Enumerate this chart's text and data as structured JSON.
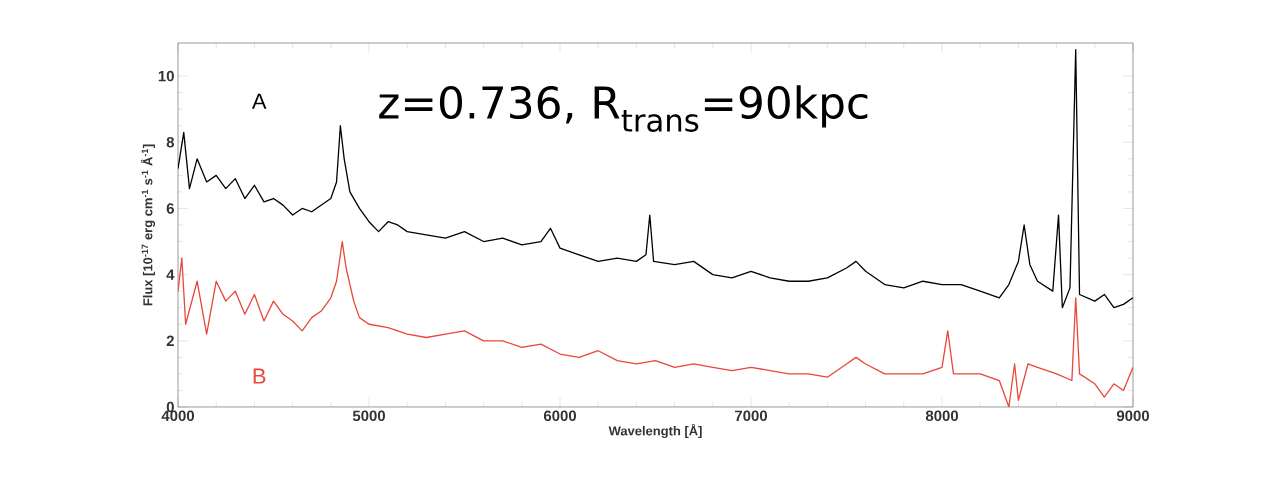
{
  "chart_data": {
    "type": "line",
    "xlabel": "Wavelength [Å]",
    "ylabel": "Flux [10$^{-17}$ erg cm$^{-1}$ s$^{-1}$ Å$^{-1}$]",
    "annotations": [
      "z=0.736, R$_{trans}$=90kpc"
    ],
    "xlim": [
      4000,
      9000
    ],
    "ylim": [
      0,
      11
    ],
    "xticks": [
      4000,
      5000,
      6000,
      7000,
      8000,
      9000
    ],
    "yticks": [
      0,
      2,
      4,
      6,
      8,
      10
    ],
    "grid": false,
    "legend": false,
    "series": [
      {
        "name": "A",
        "color": "#000000",
        "x": [
          4000,
          4030,
          4060,
          4100,
          4150,
          4200,
          4250,
          4300,
          4350,
          4400,
          4450,
          4500,
          4550,
          4600,
          4650,
          4700,
          4750,
          4800,
          4830,
          4850,
          4870,
          4900,
          4950,
          5000,
          5050,
          5100,
          5150,
          5200,
          5300,
          5400,
          5500,
          5600,
          5700,
          5800,
          5900,
          5950,
          6000,
          6100,
          6200,
          6300,
          6400,
          6450,
          6470,
          6490,
          6600,
          6700,
          6800,
          6900,
          7000,
          7100,
          7200,
          7300,
          7400,
          7500,
          7550,
          7600,
          7700,
          7800,
          7900,
          8000,
          8100,
          8200,
          8300,
          8350,
          8400,
          8430,
          8460,
          8500,
          8580,
          8610,
          8630,
          8670,
          8700,
          8720,
          8800,
          8850,
          8900,
          8950,
          9000
        ],
        "values": [
          7.2,
          8.3,
          6.6,
          7.5,
          6.8,
          7.0,
          6.6,
          6.9,
          6.3,
          6.7,
          6.2,
          6.3,
          6.1,
          5.8,
          6.0,
          5.9,
          6.1,
          6.3,
          6.8,
          8.5,
          7.5,
          6.5,
          6.0,
          5.6,
          5.3,
          5.6,
          5.5,
          5.3,
          5.2,
          5.1,
          5.3,
          5.0,
          5.1,
          4.9,
          5.0,
          5.4,
          4.8,
          4.6,
          4.4,
          4.5,
          4.4,
          4.6,
          5.8,
          4.4,
          4.3,
          4.4,
          4.0,
          3.9,
          4.1,
          3.9,
          3.8,
          3.8,
          3.9,
          4.2,
          4.4,
          4.1,
          3.7,
          3.6,
          3.8,
          3.7,
          3.7,
          3.5,
          3.3,
          3.7,
          4.4,
          5.5,
          4.3,
          3.8,
          3.5,
          5.8,
          3.0,
          3.6,
          10.8,
          3.4,
          3.2,
          3.4,
          3.0,
          3.1,
          3.3
        ]
      },
      {
        "name": "B",
        "color": "#e8473a",
        "x": [
          4000,
          4020,
          4040,
          4100,
          4150,
          4200,
          4250,
          4300,
          4350,
          4400,
          4450,
          4500,
          4550,
          4600,
          4650,
          4700,
          4750,
          4800,
          4830,
          4860,
          4880,
          4920,
          4950,
          5000,
          5100,
          5200,
          5300,
          5400,
          5500,
          5600,
          5700,
          5800,
          5900,
          6000,
          6100,
          6200,
          6300,
          6400,
          6500,
          6600,
          6700,
          6800,
          6900,
          7000,
          7100,
          7200,
          7300,
          7400,
          7500,
          7550,
          7600,
          7700,
          7800,
          7900,
          8000,
          8030,
          8060,
          8200,
          8300,
          8350,
          8380,
          8400,
          8450,
          8500,
          8600,
          8680,
          8700,
          8720,
          8800,
          8850,
          8900,
          8950,
          9000
        ],
        "values": [
          3.5,
          4.5,
          2.5,
          3.8,
          2.2,
          3.8,
          3.2,
          3.5,
          2.8,
          3.4,
          2.6,
          3.2,
          2.8,
          2.6,
          2.3,
          2.7,
          2.9,
          3.3,
          3.8,
          5.0,
          4.2,
          3.2,
          2.7,
          2.5,
          2.4,
          2.2,
          2.1,
          2.2,
          2.3,
          2.0,
          2.0,
          1.8,
          1.9,
          1.6,
          1.5,
          1.7,
          1.4,
          1.3,
          1.4,
          1.2,
          1.3,
          1.2,
          1.1,
          1.2,
          1.1,
          1.0,
          1.0,
          0.9,
          1.3,
          1.5,
          1.3,
          1.0,
          1.0,
          1.0,
          1.2,
          2.3,
          1.0,
          1.0,
          0.8,
          0.0,
          1.3,
          0.2,
          1.3,
          1.2,
          1.0,
          0.8,
          3.3,
          1.0,
          0.7,
          0.3,
          0.7,
          0.5,
          1.2
        ]
      }
    ]
  }
}
